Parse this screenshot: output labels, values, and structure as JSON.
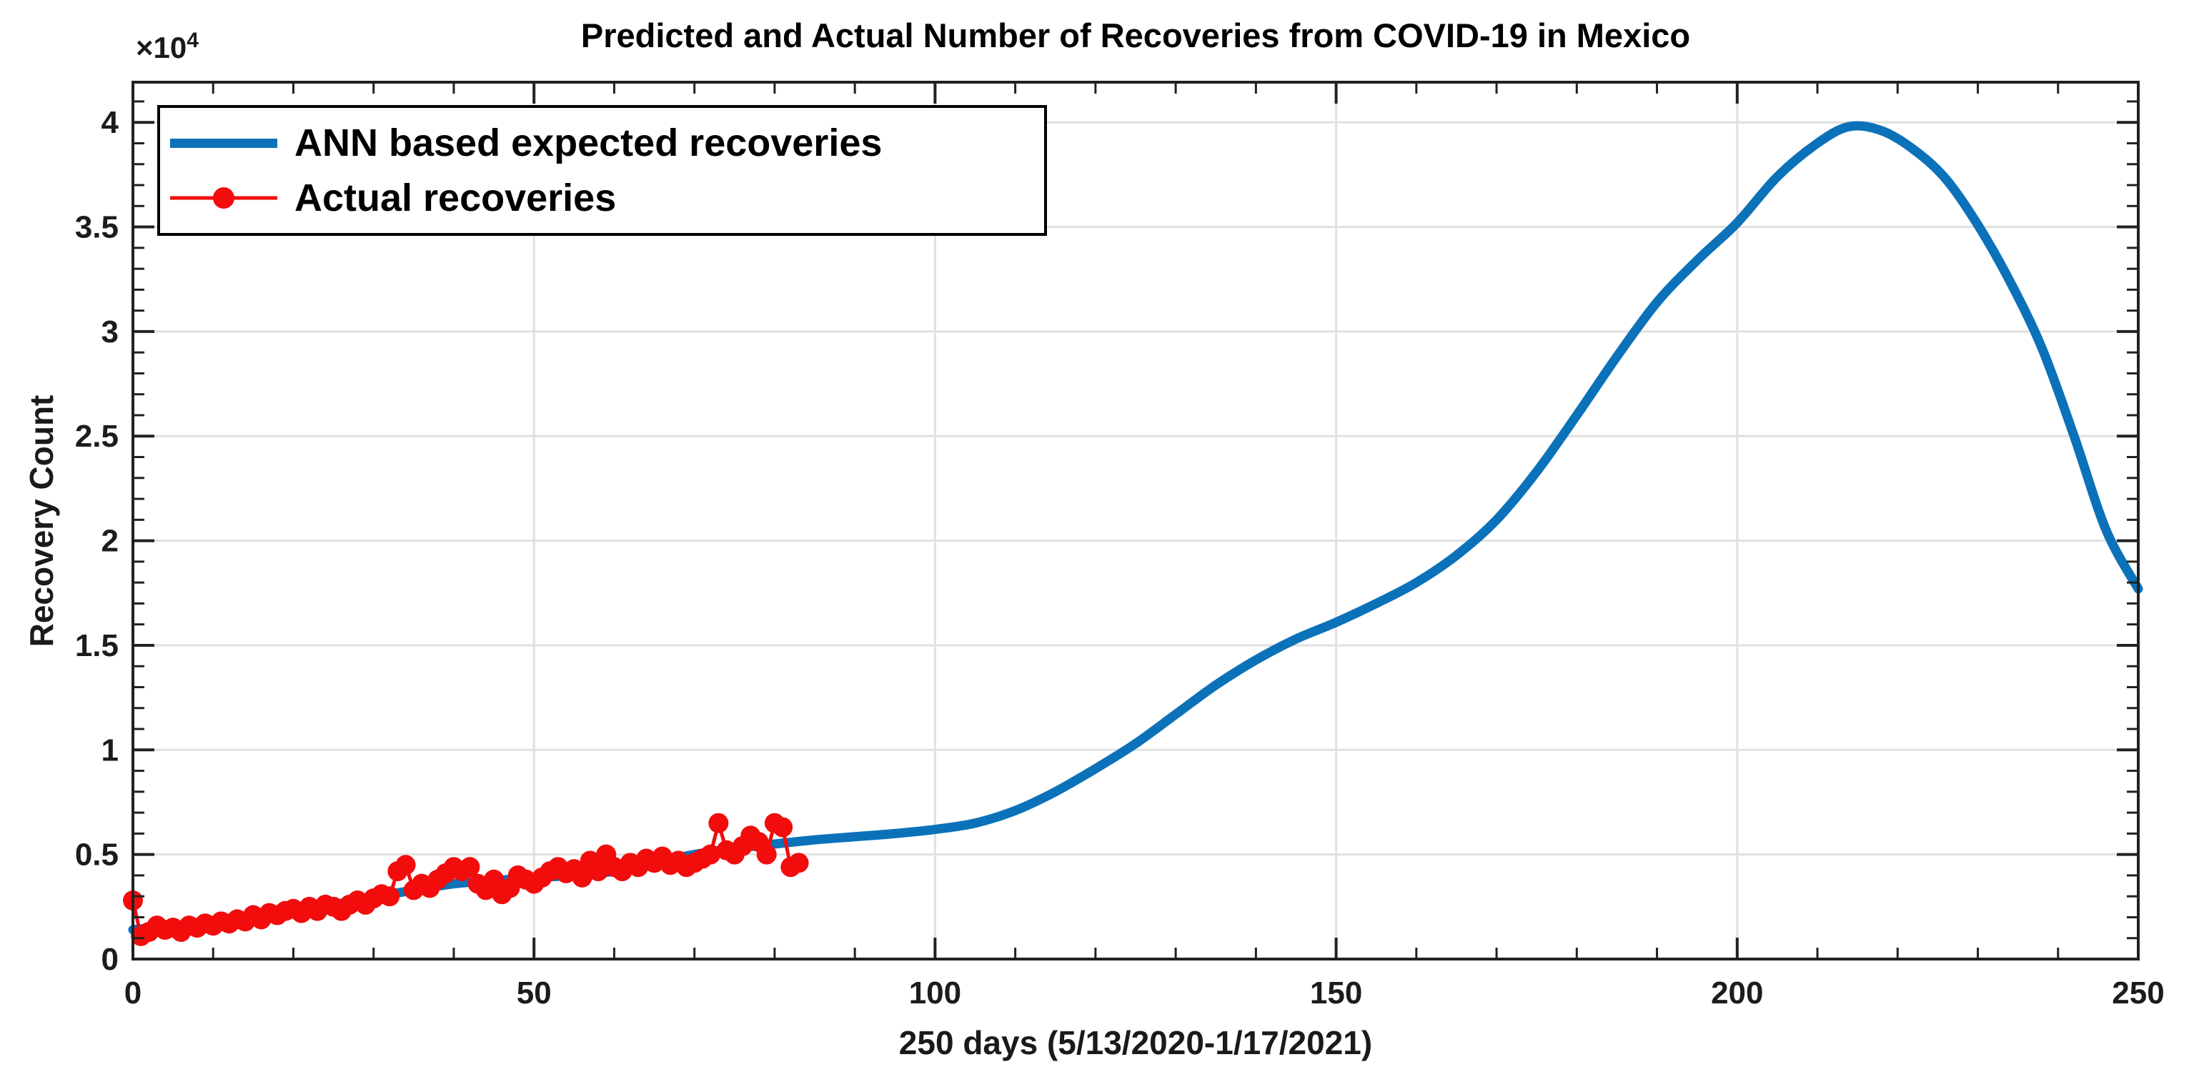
{
  "figure": {
    "background": "#ffffff",
    "axis_color": "#212121",
    "grid_color": "#e0e0e0",
    "tick_label_color": "#1c1c1c"
  },
  "y_exponent": {
    "base": "×10",
    "exp": "4"
  },
  "chart_data": {
    "type": "line",
    "title": "Predicted and Actual Number of Recoveries from COVID-19 in Mexico",
    "xlabel": "250 days (5/13/2020-1/17/2021)",
    "ylabel": "Recovery Count",
    "y_unit_multiplier": "×10⁴",
    "xlim": [
      0,
      250
    ],
    "ylim": [
      0,
      4.192
    ],
    "x_ticks": [
      0,
      50,
      100,
      150,
      200,
      250
    ],
    "y_ticks": [
      0,
      0.5,
      1,
      1.5,
      2,
      2.5,
      3,
      3.5,
      4
    ],
    "x_minor_step": 10,
    "y_minor_step": 0.1,
    "grid": true,
    "legend_position": "northwest",
    "series": [
      {
        "name": "ANN based expected recoveries",
        "type": "line",
        "color": "#0b72ba",
        "line_width": 13,
        "points": [
          [
            0,
            0.14
          ],
          [
            5,
            0.16
          ],
          [
            10,
            0.18
          ],
          [
            15,
            0.205
          ],
          [
            20,
            0.23
          ],
          [
            25,
            0.26
          ],
          [
            30,
            0.295
          ],
          [
            35,
            0.33
          ],
          [
            40,
            0.36
          ],
          [
            45,
            0.375
          ],
          [
            50,
            0.39
          ],
          [
            55,
            0.4
          ],
          [
            60,
            0.42
          ],
          [
            65,
            0.46
          ],
          [
            70,
            0.5
          ],
          [
            75,
            0.53
          ],
          [
            80,
            0.55
          ],
          [
            85,
            0.57
          ],
          [
            90,
            0.585
          ],
          [
            95,
            0.6
          ],
          [
            100,
            0.62
          ],
          [
            105,
            0.65
          ],
          [
            110,
            0.71
          ],
          [
            115,
            0.8
          ],
          [
            120,
            0.91
          ],
          [
            125,
            1.03
          ],
          [
            130,
            1.17
          ],
          [
            135,
            1.31
          ],
          [
            140,
            1.43
          ],
          [
            145,
            1.53
          ],
          [
            150,
            1.61
          ],
          [
            155,
            1.7
          ],
          [
            160,
            1.8
          ],
          [
            165,
            1.93
          ],
          [
            170,
            2.1
          ],
          [
            175,
            2.33
          ],
          [
            180,
            2.6
          ],
          [
            185,
            2.88
          ],
          [
            190,
            3.14
          ],
          [
            195,
            3.34
          ],
          [
            200,
            3.52
          ],
          [
            205,
            3.74
          ],
          [
            210,
            3.9
          ],
          [
            214,
            3.98
          ],
          [
            218,
            3.96
          ],
          [
            222,
            3.87
          ],
          [
            226,
            3.73
          ],
          [
            230,
            3.51
          ],
          [
            234,
            3.24
          ],
          [
            238,
            2.92
          ],
          [
            242,
            2.5
          ],
          [
            246,
            2.05
          ],
          [
            250,
            1.77
          ]
        ]
      },
      {
        "name": "Actual recoveries",
        "type": "line-marker",
        "color": "#f20c0c",
        "line_width": 5,
        "marker_radius": 14,
        "points": [
          [
            0,
            0.28
          ],
          [
            1,
            0.11
          ],
          [
            2,
            0.13
          ],
          [
            3,
            0.16
          ],
          [
            4,
            0.14
          ],
          [
            5,
            0.15
          ],
          [
            6,
            0.13
          ],
          [
            7,
            0.16
          ],
          [
            8,
            0.15
          ],
          [
            9,
            0.17
          ],
          [
            10,
            0.16
          ],
          [
            11,
            0.18
          ],
          [
            12,
            0.17
          ],
          [
            13,
            0.19
          ],
          [
            14,
            0.18
          ],
          [
            15,
            0.21
          ],
          [
            16,
            0.19
          ],
          [
            17,
            0.22
          ],
          [
            18,
            0.21
          ],
          [
            19,
            0.23
          ],
          [
            20,
            0.24
          ],
          [
            21,
            0.22
          ],
          [
            22,
            0.25
          ],
          [
            23,
            0.23
          ],
          [
            24,
            0.26
          ],
          [
            25,
            0.25
          ],
          [
            26,
            0.23
          ],
          [
            27,
            0.26
          ],
          [
            28,
            0.28
          ],
          [
            29,
            0.26
          ],
          [
            30,
            0.29
          ],
          [
            31,
            0.31
          ],
          [
            32,
            0.3
          ],
          [
            33,
            0.42
          ],
          [
            34,
            0.45
          ],
          [
            35,
            0.33
          ],
          [
            36,
            0.36
          ],
          [
            37,
            0.34
          ],
          [
            38,
            0.38
          ],
          [
            39,
            0.41
          ],
          [
            40,
            0.44
          ],
          [
            41,
            0.42
          ],
          [
            42,
            0.44
          ],
          [
            43,
            0.36
          ],
          [
            44,
            0.33
          ],
          [
            45,
            0.38
          ],
          [
            46,
            0.31
          ],
          [
            47,
            0.34
          ],
          [
            48,
            0.4
          ],
          [
            49,
            0.38
          ],
          [
            50,
            0.36
          ],
          [
            51,
            0.39
          ],
          [
            52,
            0.42
          ],
          [
            53,
            0.44
          ],
          [
            54,
            0.41
          ],
          [
            55,
            0.43
          ],
          [
            56,
            0.39
          ],
          [
            57,
            0.47
          ],
          [
            58,
            0.42
          ],
          [
            59,
            0.5
          ],
          [
            60,
            0.44
          ],
          [
            61,
            0.42
          ],
          [
            62,
            0.46
          ],
          [
            63,
            0.44
          ],
          [
            64,
            0.48
          ],
          [
            65,
            0.46
          ],
          [
            66,
            0.49
          ],
          [
            67,
            0.45
          ],
          [
            68,
            0.47
          ],
          [
            69,
            0.44
          ],
          [
            70,
            0.46
          ],
          [
            71,
            0.48
          ],
          [
            72,
            0.5
          ],
          [
            73,
            0.65
          ],
          [
            74,
            0.52
          ],
          [
            75,
            0.5
          ],
          [
            76,
            0.54
          ],
          [
            77,
            0.59
          ],
          [
            78,
            0.56
          ],
          [
            79,
            0.5
          ],
          [
            80,
            0.65
          ],
          [
            81,
            0.63
          ],
          [
            82,
            0.44
          ],
          [
            83,
            0.46
          ]
        ]
      }
    ]
  }
}
